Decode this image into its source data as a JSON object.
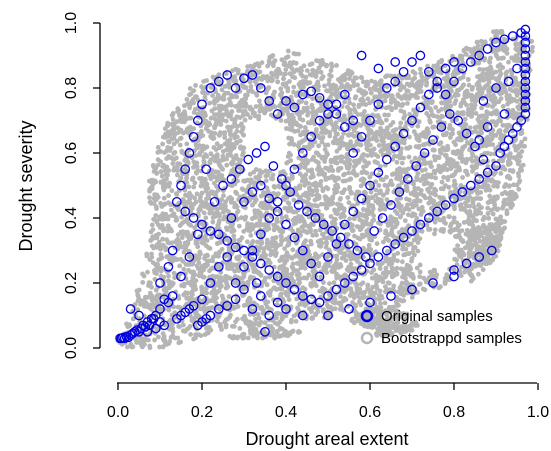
{
  "chart_data": {
    "type": "scatter",
    "xlabel": "Drought areal extent",
    "ylabel": "Drought severity",
    "xlim": [
      0.0,
      1.0
    ],
    "ylim": [
      0.0,
      1.0
    ],
    "x_ticks": [
      "0.0",
      "0.2",
      "0.4",
      "0.6",
      "0.8",
      "1.0"
    ],
    "y_ticks": [
      "0.0",
      "0.2",
      "0.4",
      "0.6",
      "0.8",
      "1.0"
    ],
    "grid": false,
    "legend": {
      "position": "bottom-right",
      "entries": [
        {
          "label": "Original samples",
          "color": "#0000e0"
        },
        {
          "label": "Bootstrappd samples",
          "color": "#b5b5b5"
        }
      ]
    },
    "series": [
      {
        "name": "Bootstrappd samples",
        "marker": "filled-circle",
        "color": "#b5b5b5",
        "regions": [
          [
            [
              0.0,
              0.0
            ],
            [
              0.1,
              0.0
            ],
            [
              0.25,
              0.05
            ],
            [
              0.55,
              0.1
            ],
            [
              0.6,
              0.07
            ],
            [
              0.7,
              0.15
            ],
            [
              0.8,
              0.2
            ],
            [
              0.9,
              0.3
            ],
            [
              0.96,
              0.5
            ],
            [
              0.98,
              0.75
            ],
            [
              0.99,
              0.95
            ],
            [
              0.9,
              0.98
            ],
            [
              0.8,
              0.9
            ],
            [
              0.7,
              0.85
            ],
            [
              0.6,
              0.83
            ],
            [
              0.5,
              0.88
            ],
            [
              0.4,
              0.92
            ],
            [
              0.33,
              0.88
            ],
            [
              0.25,
              0.85
            ],
            [
              0.17,
              0.8
            ],
            [
              0.12,
              0.7
            ],
            [
              0.09,
              0.6
            ],
            [
              0.07,
              0.5
            ],
            [
              0.08,
              0.4
            ],
            [
              0.07,
              0.3
            ],
            [
              0.05,
              0.2
            ],
            [
              0.03,
              0.1
            ],
            [
              0.0,
              0.03
            ]
          ],
          [
            [
              0.84,
              0.2
            ],
            [
              0.9,
              0.28
            ],
            [
              0.92,
              0.35
            ],
            [
              0.88,
              0.4
            ],
            [
              0.83,
              0.35
            ],
            [
              0.82,
              0.25
            ]
          ],
          [
            [
              0.55,
              0.08
            ],
            [
              0.63,
              0.05
            ],
            [
              0.7,
              0.1
            ],
            [
              0.65,
              0.13
            ],
            [
              0.58,
              0.12
            ]
          ],
          [
            [
              0.25,
              0.03
            ],
            [
              0.38,
              0.03
            ],
            [
              0.45,
              0.05
            ],
            [
              0.35,
              0.07
            ]
          ],
          [
            [
              0.6,
              0.03
            ],
            [
              0.7,
              0.05
            ],
            [
              0.72,
              0.08
            ],
            [
              0.62,
              0.07
            ]
          ]
        ]
      },
      {
        "name": "Original samples",
        "marker": "open-circle",
        "color": "#0000e0",
        "points": [
          [
            0.005,
            0.03
          ],
          [
            0.008,
            0.03
          ],
          [
            0.012,
            0.032
          ],
          [
            0.016,
            0.03
          ],
          [
            0.02,
            0.035
          ],
          [
            0.025,
            0.033
          ],
          [
            0.03,
            0.04
          ],
          [
            0.035,
            0.045
          ],
          [
            0.04,
            0.05
          ],
          [
            0.045,
            0.055
          ],
          [
            0.05,
            0.05
          ],
          [
            0.055,
            0.06
          ],
          [
            0.06,
            0.07
          ],
          [
            0.065,
            0.065
          ],
          [
            0.07,
            0.08
          ],
          [
            0.075,
            0.07
          ],
          [
            0.08,
            0.09
          ],
          [
            0.085,
            0.09
          ],
          [
            0.09,
            0.1
          ],
          [
            0.1,
            0.12
          ],
          [
            0.11,
            0.15
          ],
          [
            0.12,
            0.14
          ],
          [
            0.13,
            0.16
          ],
          [
            0.03,
            0.12
          ],
          [
            0.05,
            0.1
          ],
          [
            0.07,
            0.05
          ],
          [
            0.09,
            0.06
          ],
          [
            0.1,
            0.08
          ],
          [
            0.11,
            0.07
          ],
          [
            0.14,
            0.09
          ],
          [
            0.15,
            0.1
          ],
          [
            0.16,
            0.11
          ],
          [
            0.17,
            0.12
          ],
          [
            0.18,
            0.13
          ],
          [
            0.19,
            0.07
          ],
          [
            0.2,
            0.08
          ],
          [
            0.21,
            0.09
          ],
          [
            0.22,
            0.1
          ],
          [
            0.24,
            0.12
          ],
          [
            0.26,
            0.13
          ],
          [
            0.28,
            0.2
          ],
          [
            0.3,
            0.25
          ],
          [
            0.32,
            0.3
          ],
          [
            0.34,
            0.35
          ],
          [
            0.36,
            0.4
          ],
          [
            0.38,
            0.45
          ],
          [
            0.4,
            0.5
          ],
          [
            0.42,
            0.55
          ],
          [
            0.44,
            0.6
          ],
          [
            0.46,
            0.65
          ],
          [
            0.48,
            0.7
          ],
          [
            0.5,
            0.72
          ],
          [
            0.52,
            0.75
          ],
          [
            0.54,
            0.78
          ],
          [
            0.56,
            0.6
          ],
          [
            0.58,
            0.65
          ],
          [
            0.6,
            0.7
          ],
          [
            0.62,
            0.75
          ],
          [
            0.64,
            0.8
          ],
          [
            0.66,
            0.82
          ],
          [
            0.68,
            0.85
          ],
          [
            0.7,
            0.88
          ],
          [
            0.72,
            0.9
          ],
          [
            0.74,
            0.85
          ],
          [
            0.76,
            0.8
          ],
          [
            0.78,
            0.78
          ],
          [
            0.8,
            0.82
          ],
          [
            0.82,
            0.86
          ],
          [
            0.84,
            0.88
          ],
          [
            0.86,
            0.9
          ],
          [
            0.88,
            0.92
          ],
          [
            0.9,
            0.94
          ],
          [
            0.92,
            0.95
          ],
          [
            0.94,
            0.96
          ],
          [
            0.96,
            0.97
          ],
          [
            0.97,
            0.98
          ],
          [
            0.97,
            0.96
          ],
          [
            0.97,
            0.94
          ],
          [
            0.97,
            0.92
          ],
          [
            0.97,
            0.9
          ],
          [
            0.97,
            0.88
          ],
          [
            0.97,
            0.86
          ],
          [
            0.97,
            0.84
          ],
          [
            0.97,
            0.82
          ],
          [
            0.97,
            0.8
          ],
          [
            0.97,
            0.78
          ],
          [
            0.97,
            0.76
          ],
          [
            0.97,
            0.74
          ],
          [
            0.97,
            0.72
          ],
          [
            0.96,
            0.7
          ],
          [
            0.95,
            0.68
          ],
          [
            0.94,
            0.66
          ],
          [
            0.93,
            0.64
          ],
          [
            0.92,
            0.62
          ],
          [
            0.91,
            0.6
          ],
          [
            0.15,
            0.5
          ],
          [
            0.16,
            0.55
          ],
          [
            0.17,
            0.6
          ],
          [
            0.18,
            0.65
          ],
          [
            0.19,
            0.7
          ],
          [
            0.2,
            0.75
          ],
          [
            0.22,
            0.8
          ],
          [
            0.24,
            0.82
          ],
          [
            0.26,
            0.84
          ],
          [
            0.28,
            0.8
          ],
          [
            0.3,
            0.83
          ],
          [
            0.32,
            0.84
          ],
          [
            0.34,
            0.8
          ],
          [
            0.36,
            0.76
          ],
          [
            0.38,
            0.72
          ],
          [
            0.4,
            0.76
          ],
          [
            0.42,
            0.74
          ],
          [
            0.44,
            0.78
          ],
          [
            0.46,
            0.79
          ],
          [
            0.48,
            0.77
          ],
          [
            0.5,
            0.75
          ],
          [
            0.52,
            0.72
          ],
          [
            0.54,
            0.68
          ],
          [
            0.56,
            0.7
          ],
          [
            0.14,
            0.45
          ],
          [
            0.16,
            0.42
          ],
          [
            0.18,
            0.4
          ],
          [
            0.2,
            0.38
          ],
          [
            0.22,
            0.36
          ],
          [
            0.24,
            0.35
          ],
          [
            0.26,
            0.33
          ],
          [
            0.28,
            0.31
          ],
          [
            0.3,
            0.3
          ],
          [
            0.32,
            0.28
          ],
          [
            0.34,
            0.26
          ],
          [
            0.36,
            0.24
          ],
          [
            0.38,
            0.22
          ],
          [
            0.4,
            0.2
          ],
          [
            0.42,
            0.18
          ],
          [
            0.44,
            0.16
          ],
          [
            0.46,
            0.15
          ],
          [
            0.48,
            0.14
          ],
          [
            0.5,
            0.16
          ],
          [
            0.52,
            0.18
          ],
          [
            0.54,
            0.2
          ],
          [
            0.56,
            0.22
          ],
          [
            0.58,
            0.24
          ],
          [
            0.6,
            0.26
          ],
          [
            0.62,
            0.28
          ],
          [
            0.64,
            0.3
          ],
          [
            0.66,
            0.32
          ],
          [
            0.68,
            0.34
          ],
          [
            0.7,
            0.36
          ],
          [
            0.72,
            0.38
          ],
          [
            0.74,
            0.4
          ],
          [
            0.76,
            0.42
          ],
          [
            0.78,
            0.44
          ],
          [
            0.8,
            0.46
          ],
          [
            0.82,
            0.48
          ],
          [
            0.84,
            0.5
          ],
          [
            0.86,
            0.52
          ],
          [
            0.88,
            0.54
          ],
          [
            0.9,
            0.56
          ],
          [
            0.25,
            0.5
          ],
          [
            0.27,
            0.52
          ],
          [
            0.29,
            0.55
          ],
          [
            0.31,
            0.58
          ],
          [
            0.33,
            0.6
          ],
          [
            0.35,
            0.62
          ],
          [
            0.37,
            0.56
          ],
          [
            0.39,
            0.52
          ],
          [
            0.41,
            0.48
          ],
          [
            0.43,
            0.44
          ],
          [
            0.45,
            0.42
          ],
          [
            0.47,
            0.4
          ],
          [
            0.49,
            0.38
          ],
          [
            0.51,
            0.36
          ],
          [
            0.53,
            0.34
          ],
          [
            0.55,
            0.32
          ],
          [
            0.57,
            0.3
          ],
          [
            0.59,
            0.28
          ],
          [
            0.61,
            0.36
          ],
          [
            0.63,
            0.4
          ],
          [
            0.65,
            0.44
          ],
          [
            0.67,
            0.48
          ],
          [
            0.69,
            0.52
          ],
          [
            0.71,
            0.56
          ],
          [
            0.73,
            0.6
          ],
          [
            0.75,
            0.64
          ],
          [
            0.77,
            0.68
          ],
          [
            0.79,
            0.72
          ],
          [
            0.81,
            0.7
          ],
          [
            0.83,
            0.66
          ],
          [
            0.85,
            0.62
          ],
          [
            0.87,
            0.58
          ],
          [
            0.2,
            0.15
          ],
          [
            0.22,
            0.2
          ],
          [
            0.24,
            0.25
          ],
          [
            0.26,
            0.28
          ],
          [
            0.28,
            0.15
          ],
          [
            0.3,
            0.18
          ],
          [
            0.32,
            0.12
          ],
          [
            0.34,
            0.16
          ],
          [
            0.36,
            0.1
          ],
          [
            0.38,
            0.14
          ],
          [
            0.4,
            0.12
          ],
          [
            0.44,
            0.1
          ],
          [
            0.5,
            0.1
          ],
          [
            0.55,
            0.12
          ],
          [
            0.6,
            0.14
          ],
          [
            0.65,
            0.16
          ],
          [
            0.7,
            0.18
          ],
          [
            0.75,
            0.2
          ],
          [
            0.8,
            0.24
          ],
          [
            0.86,
            0.28
          ],
          [
            0.89,
            0.3
          ],
          [
            0.8,
            0.22
          ],
          [
            0.83,
            0.26
          ],
          [
            0.3,
            0.45
          ],
          [
            0.32,
            0.48
          ],
          [
            0.34,
            0.5
          ],
          [
            0.36,
            0.46
          ],
          [
            0.38,
            0.42
          ],
          [
            0.4,
            0.38
          ],
          [
            0.42,
            0.34
          ],
          [
            0.44,
            0.3
          ],
          [
            0.46,
            0.26
          ],
          [
            0.48,
            0.22
          ],
          [
            0.5,
            0.28
          ],
          [
            0.52,
            0.32
          ],
          [
            0.54,
            0.38
          ],
          [
            0.56,
            0.42
          ],
          [
            0.58,
            0.46
          ],
          [
            0.6,
            0.5
          ],
          [
            0.62,
            0.54
          ],
          [
            0.64,
            0.58
          ],
          [
            0.66,
            0.62
          ],
          [
            0.68,
            0.66
          ],
          [
            0.7,
            0.7
          ],
          [
            0.72,
            0.74
          ],
          [
            0.74,
            0.78
          ],
          [
            0.76,
            0.82
          ],
          [
            0.78,
            0.86
          ],
          [
            0.8,
            0.88
          ],
          [
            0.1,
            0.2
          ],
          [
            0.12,
            0.25
          ],
          [
            0.13,
            0.3
          ],
          [
            0.35,
            0.05
          ],
          [
            0.33,
            0.2
          ],
          [
            0.27,
            0.4
          ],
          [
            0.23,
            0.45
          ],
          [
            0.21,
            0.55
          ],
          [
            0.19,
            0.35
          ],
          [
            0.17,
            0.28
          ],
          [
            0.15,
            0.22
          ],
          [
            0.58,
            0.9
          ],
          [
            0.62,
            0.86
          ],
          [
            0.66,
            0.88
          ],
          [
            0.87,
            0.76
          ],
          [
            0.9,
            0.8
          ],
          [
            0.93,
            0.82
          ],
          [
            0.95,
            0.86
          ],
          [
            0.92,
            0.72
          ],
          [
            0.88,
            0.68
          ],
          [
            0.86,
            0.64
          ]
        ]
      }
    ]
  }
}
